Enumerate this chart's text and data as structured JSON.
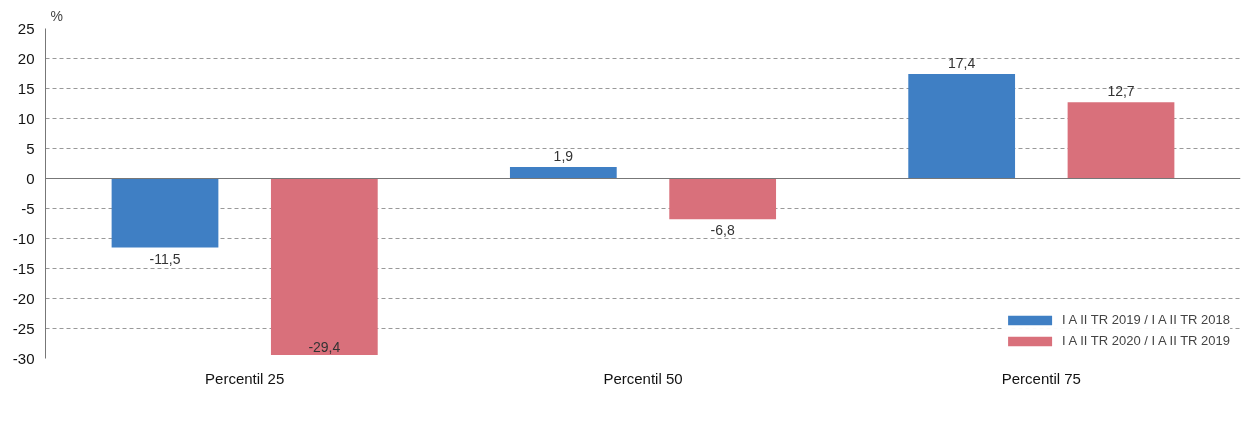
{
  "chart_data": {
    "type": "bar",
    "ylabel": "%",
    "categories": [
      "Percentil 25",
      "Percentil 50",
      "Percentil 75"
    ],
    "series": [
      {
        "name": "I A II TR 2019 / I A II TR 2018",
        "color": "#3f7fc4",
        "values": [
          -11.5,
          1.9,
          17.4
        ],
        "value_labels": [
          "-11,5",
          "1,9",
          "17,4"
        ]
      },
      {
        "name": "I A II TR 2020 / I A II TR 2019",
        "color": "#d9707b",
        "values": [
          -29.4,
          -6.8,
          12.7
        ],
        "value_labels": [
          "-29,4",
          "-6,8",
          "12,7"
        ]
      }
    ],
    "ylim": [
      -30,
      25
    ],
    "yticks": [
      -30,
      -25,
      -20,
      -15,
      -10,
      -5,
      0,
      5,
      10,
      15,
      20,
      25
    ],
    "grid": "y",
    "legend": "bottom right"
  }
}
